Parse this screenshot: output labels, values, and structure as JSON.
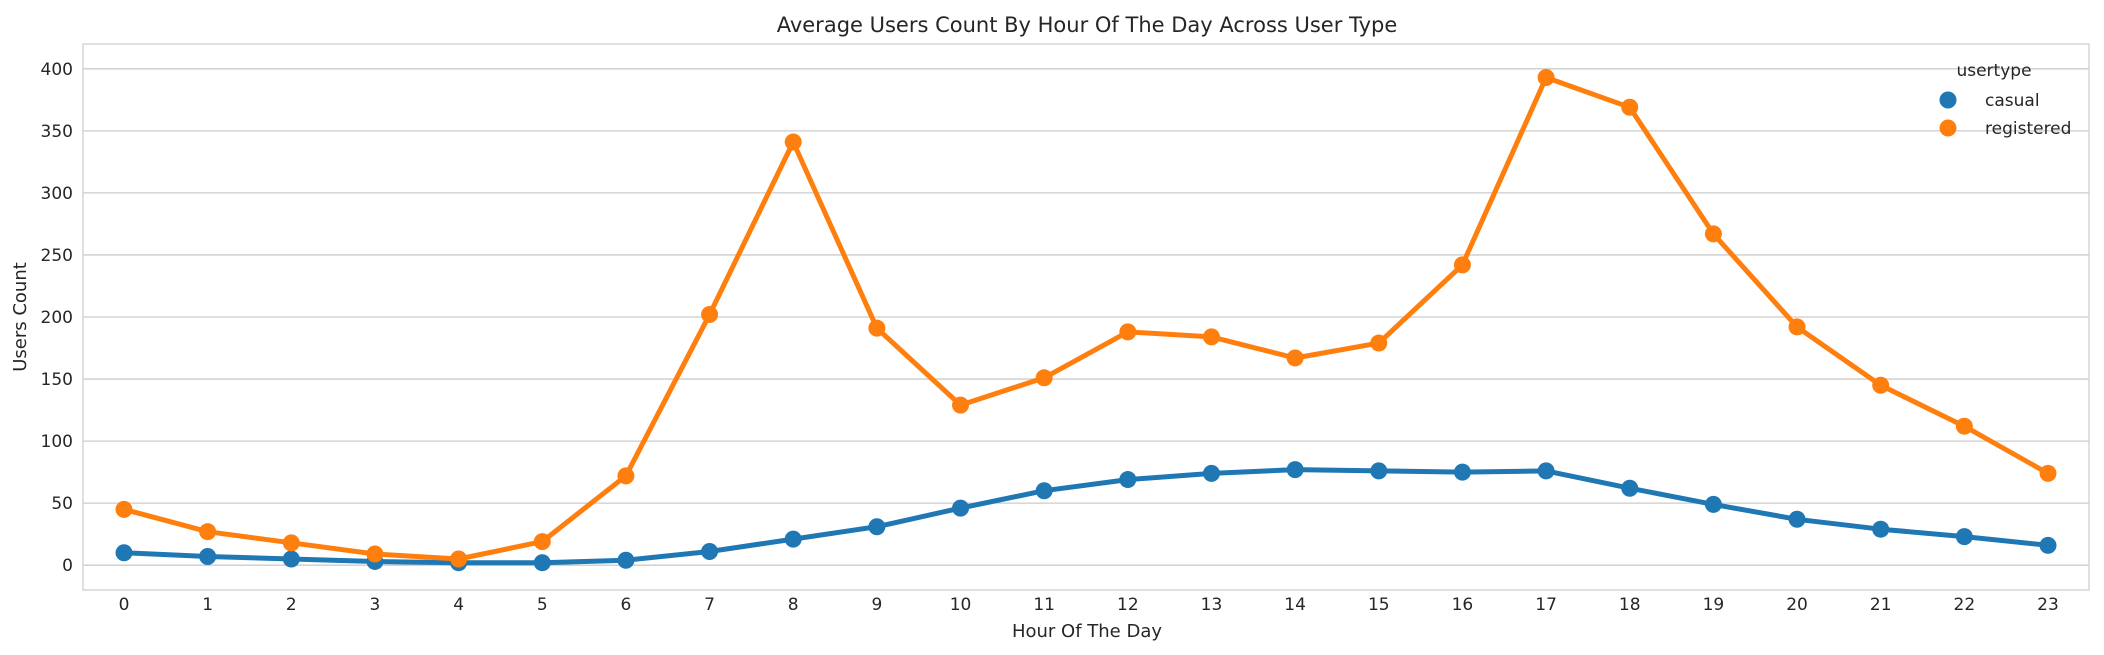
{
  "chart_data": {
    "type": "line",
    "title": "Average Users Count By Hour Of The Day Across User Type",
    "xlabel": "Hour Of The Day",
    "ylabel": "Users Count",
    "x": [
      "0",
      "1",
      "2",
      "3",
      "4",
      "5",
      "6",
      "7",
      "8",
      "9",
      "10",
      "11",
      "12",
      "13",
      "14",
      "15",
      "16",
      "17",
      "18",
      "19",
      "20",
      "21",
      "22",
      "23"
    ],
    "ylim": [
      -20,
      420
    ],
    "yticks": [
      "0",
      "50",
      "100",
      "150",
      "200",
      "250",
      "300",
      "350",
      "400"
    ],
    "grid": "horizontal",
    "legend": {
      "title": "usertype",
      "placement": "top-right"
    },
    "series": [
      {
        "name": "casual",
        "color": "#1f77b4",
        "values": [
          10,
          7,
          5,
          3,
          2,
          2,
          4,
          11,
          21,
          31,
          46,
          60,
          69,
          74,
          77,
          76,
          75,
          76,
          62,
          49,
          37,
          29,
          23,
          16
        ]
      },
      {
        "name": "registered",
        "color": "#ff7f0e",
        "values": [
          45,
          27,
          18,
          9,
          5,
          19,
          72,
          202,
          341,
          191,
          129,
          151,
          188,
          184,
          167,
          179,
          242,
          393,
          369,
          267,
          192,
          145,
          112,
          74
        ]
      }
    ]
  }
}
